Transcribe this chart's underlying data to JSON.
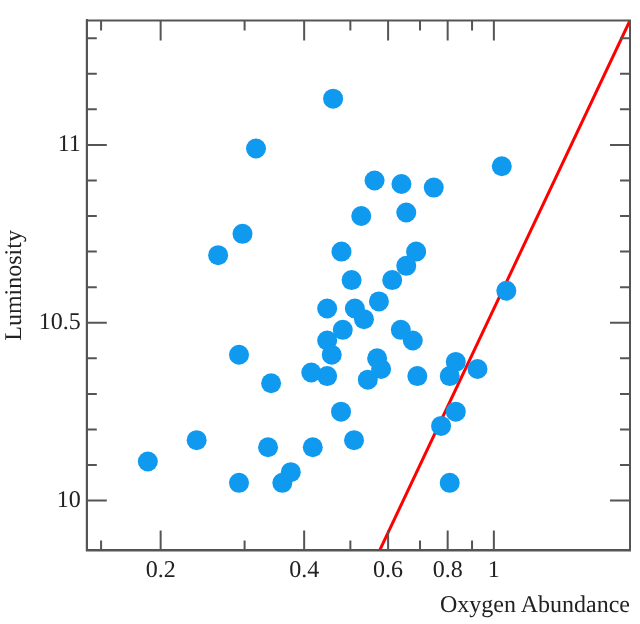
{
  "chart_data": {
    "type": "scatter",
    "xlabel": "Oxygen Abundance",
    "ylabel": "Luminosity",
    "log": "x",
    "grid": false,
    "legend": false,
    "xlim": [
      0.14,
      1.93
    ],
    "ylim": [
      9.86,
      11.35
    ],
    "xticks": [
      {
        "value": 0.15,
        "label": null
      },
      0.2,
      {
        "value": 0.3,
        "label": null
      },
      0.4,
      {
        "value": 0.5,
        "label": null
      },
      0.6,
      {
        "value": 0.7,
        "label": null
      },
      0.8,
      {
        "value": 0.9,
        "label": null
      },
      1
    ],
    "yticks": [
      10,
      {
        "value": 10.1,
        "label": null
      },
      {
        "value": 10.2,
        "label": null
      },
      {
        "value": 10.3,
        "label": null
      },
      {
        "value": 10.4,
        "label": null
      },
      10.5,
      {
        "value": 10.6,
        "label": null
      },
      {
        "value": 10.7,
        "label": null
      },
      {
        "value": 10.8,
        "label": null
      },
      {
        "value": 10.9,
        "label": null
      },
      11,
      {
        "value": 11.1,
        "label": null
      },
      {
        "value": 11.2,
        "label": null
      },
      {
        "value": 11.3,
        "label": null
      }
    ],
    "series": [
      {
        "marker": "circle",
        "color": "#0f9af0",
        "x": [
          0.46,
          0.317,
          0.297,
          0.264,
          0.479,
          0.503,
          0.527,
          0.562,
          0.64,
          0.748,
          1.039,
          0.655,
          0.687,
          0.655,
          0.612,
          0.574,
          1.062,
          0.447,
          0.511,
          0.534,
          0.482,
          0.447,
          0.457,
          0.638,
          0.676,
          0.569,
          0.58,
          0.544,
          0.414,
          0.447,
          0.691,
          0.808,
          0.832,
          0.924,
          0.478,
          0.832,
          0.775,
          0.417,
          0.509,
          0.808,
          0.292,
          0.341,
          0.238,
          0.336,
          0.188,
          0.292,
          0.375,
          0.36
        ],
        "values": [
          11.13,
          10.99,
          10.75,
          10.69,
          10.7,
          10.62,
          10.8,
          10.9,
          10.89,
          10.88,
          10.94,
          10.81,
          10.7,
          10.66,
          10.62,
          10.56,
          10.59,
          10.54,
          10.54,
          10.51,
          10.48,
          10.45,
          10.41,
          10.48,
          10.45,
          10.4,
          10.37,
          10.34,
          10.36,
          10.35,
          10.35,
          10.35,
          10.39,
          10.37,
          10.25,
          10.25,
          10.21,
          10.15,
          10.17,
          10.05,
          10.41,
          10.33,
          10.17,
          10.15,
          10.11,
          10.05,
          10.08,
          10.05
        ]
      },
      {
        "type": "line",
        "marker": "none",
        "color": "#ff0000",
        "x": [
          0.576,
          1.93
        ],
        "values": [
          9.86,
          11.35
        ]
      }
    ]
  }
}
